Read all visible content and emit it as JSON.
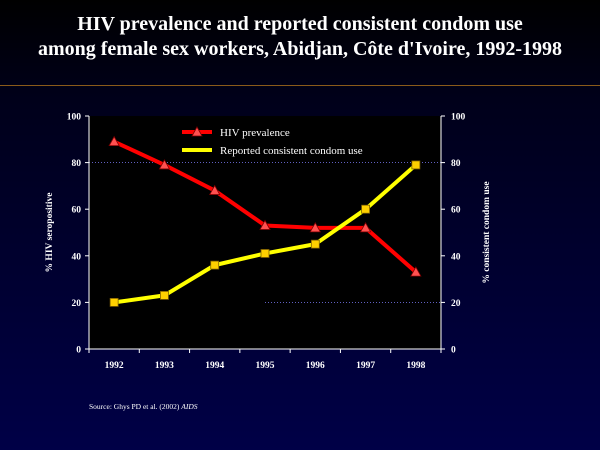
{
  "title": {
    "line1": "HIV prevalence and reported consistent condom use",
    "line2": "among female sex workers, Abidjan, Côte d'Ivoire, 1992-1998"
  },
  "source": {
    "text": "Source: Ghys PD et al. (2002)",
    "journal": "AIDS"
  },
  "colors": {
    "background": "#000047",
    "plot_area": "#000000",
    "hiv_series": "#ff0000",
    "condom_series": "#ffff00",
    "hiv_marker": "#ff5050",
    "condom_marker": "#ffd000"
  },
  "chart_data": {
    "type": "line",
    "categories": [
      "1992",
      "1993",
      "1994",
      "1995",
      "1996",
      "1997",
      "1998"
    ],
    "ylabel": "% HIV seropositive",
    "ylabel_right": "% consistent condom use",
    "ylim": [
      0,
      100
    ],
    "y_ticks": [
      "0",
      "20",
      "40",
      "60",
      "80",
      "100"
    ],
    "y2lim": [
      0,
      100
    ],
    "y2_ticks": [
      "0",
      "20",
      "40",
      "60",
      "80",
      "100"
    ],
    "series": [
      {
        "name": "HIV prevalence",
        "axis": "left",
        "marker": "triangle",
        "values": [
          89,
          79,
          68,
          53,
          52,
          52,
          33
        ]
      },
      {
        "name": "Reported consistent condom use",
        "axis": "right",
        "marker": "square",
        "values": [
          20,
          23,
          36,
          41,
          45,
          60,
          79
        ]
      }
    ],
    "gridlines": [
      {
        "axis": "left",
        "value": 80
      },
      {
        "axis": "right",
        "value": 20,
        "from_category": "1995"
      }
    ],
    "legend_position": "top-center inside plot",
    "grid": false
  }
}
